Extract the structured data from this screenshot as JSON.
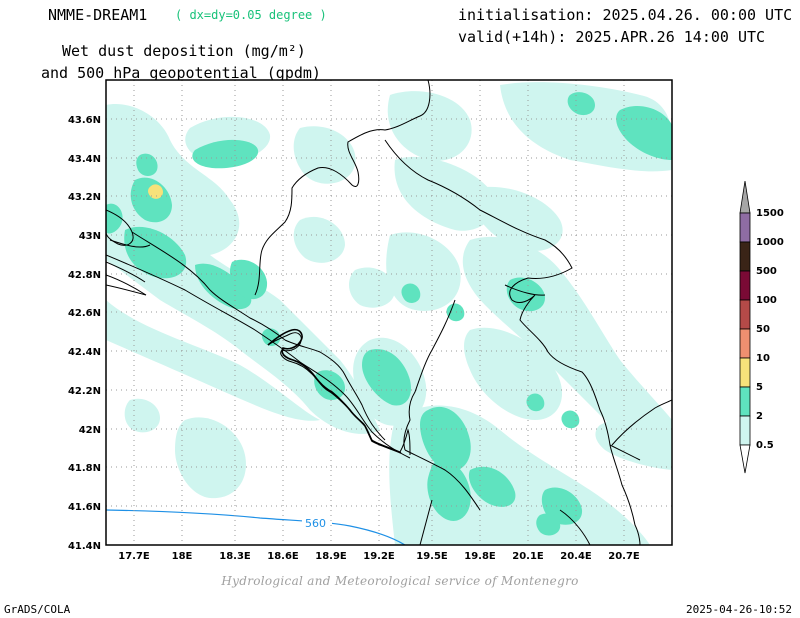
{
  "header": {
    "model_name": "NMME-DREAM1",
    "resolution": "( dx=dy=0.05 degree )",
    "title_line1": "Wet dust deposition (mg/m²)",
    "title_line2": "and 500 hPa geopotential (gpdm)",
    "init_line": "initialisation: 2025.04.26. 00:00 UTC",
    "valid_line": "valid(+14h): 2025.APR.26 14:00 UTC"
  },
  "map": {
    "lat_labels": [
      "43.6N",
      "43.4N",
      "43.2N",
      "43N",
      "42.8N",
      "42.6N",
      "42.4N",
      "42.2N",
      "42N",
      "41.8N",
      "41.6N",
      "41.4N"
    ],
    "lon_labels": [
      "17.7E",
      "18E",
      "18.3E",
      "18.6E",
      "18.9E",
      "19.2E",
      "19.5E",
      "19.8E",
      "20.1E",
      "20.4E",
      "20.7E"
    ],
    "contour_label": "560",
    "colors": {
      "light": "#cff5ef",
      "medium": "#5fe3bf",
      "yellow": "#f7e27a",
      "contour": "#1e90e6",
      "grid": "#9a9a9a"
    }
  },
  "colorbar": {
    "labels": [
      "1500",
      "1000",
      "500",
      "100",
      "50",
      "10",
      "5",
      "2",
      "0.5"
    ],
    "colors": [
      "#a6a6a6",
      "#8e6ca3",
      "#3a2417",
      "#7a0a35",
      "#b44a48",
      "#ee8f70",
      "#f7e27a",
      "#5fe3bf",
      "#cff5ef",
      "#ffffff"
    ]
  },
  "footer": {
    "credit": "Hydrological and Meteorological service of Montenegro",
    "left": "GrADS/COLA",
    "right": "2025-04-26-10:52"
  }
}
